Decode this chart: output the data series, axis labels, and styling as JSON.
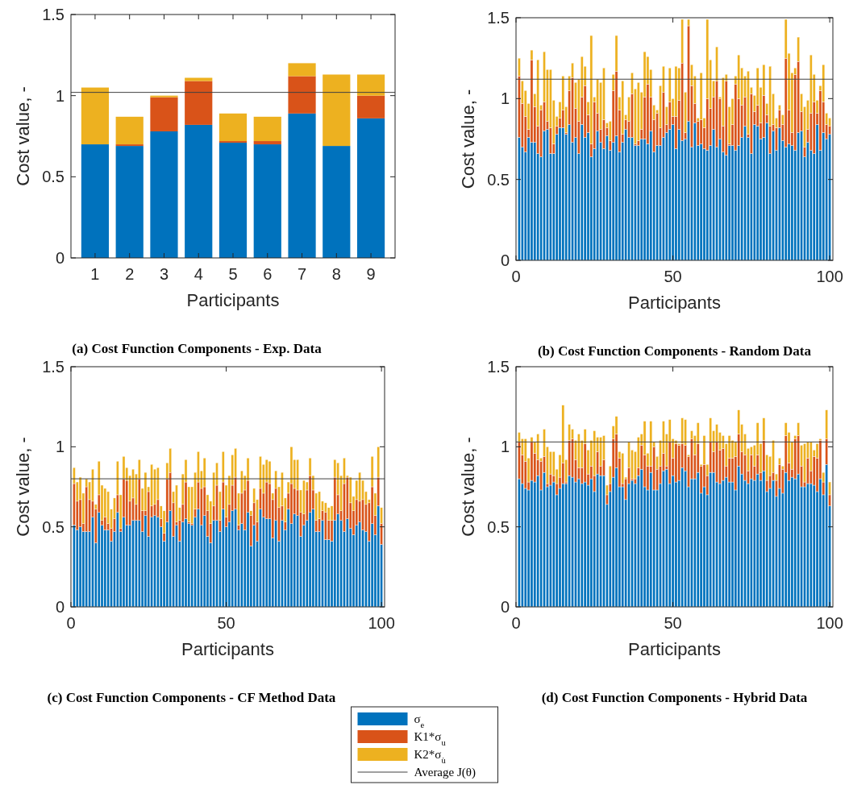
{
  "chart_data": [
    {
      "type": "bar",
      "stacked": true,
      "title": "(a) Cost Function Components - Exp. Data",
      "xlabel": "Participants",
      "ylabel": "Cost value, -",
      "categories": [
        "1",
        "2",
        "3",
        "4",
        "5",
        "6",
        "7",
        "8",
        "9"
      ],
      "ylim": [
        0,
        1.5
      ],
      "yticks": [
        0,
        0.5,
        1,
        1.5
      ],
      "legend": "bottom",
      "series": [
        {
          "name": "σ$_{e}$",
          "color": "#0072bd",
          "values": [
            0.7,
            0.69,
            0.78,
            0.82,
            0.71,
            0.7,
            0.89,
            0.69,
            0.86
          ]
        },
        {
          "name": "K1*σ$_{u}$",
          "color": "#d95319",
          "values": [
            0,
            0.01,
            0.21,
            0.27,
            0.01,
            0.02,
            0.23,
            0,
            0.14
          ]
        },
        {
          "name": "K2*σ$_{u̇}$",
          "color": "#edb120",
          "values": [
            0.35,
            0.17,
            0.01,
            0.02,
            0.17,
            0.15,
            0.08,
            0.44,
            0.13
          ]
        }
      ],
      "ref_lines": [
        {
          "axis": "y",
          "value": 1.02,
          "label": "Average J(θ)",
          "color": "#404040"
        }
      ]
    },
    {
      "type": "bar",
      "stacked": true,
      "title": "(b) Cost Function Components - Random Data",
      "xlabel": "Participants",
      "ylabel": "Cost value, -",
      "x": [
        1,
        2,
        3,
        4,
        5,
        6,
        7,
        8,
        9,
        10,
        11,
        12,
        13,
        14,
        15,
        16,
        17,
        18,
        19,
        20,
        21,
        22,
        23,
        24,
        25,
        26,
        27,
        28,
        29,
        30,
        31,
        32,
        33,
        34,
        35,
        36,
        37,
        38,
        39,
        40,
        41,
        42,
        43,
        44,
        45,
        46,
        47,
        48,
        49,
        50,
        51,
        52,
        53,
        54,
        55,
        56,
        57,
        58,
        59,
        60,
        61,
        62,
        63,
        64,
        65,
        66,
        67,
        68,
        69,
        70,
        71,
        72,
        73,
        74,
        75,
        76,
        77,
        78,
        79,
        80,
        81,
        82,
        83,
        84,
        85,
        86,
        87,
        88,
        89,
        90,
        91,
        92,
        93,
        94,
        95,
        96,
        97,
        98,
        99,
        100
      ],
      "xlim": [
        0,
        101
      ],
      "xticks": [
        0,
        50,
        100
      ],
      "ylim": [
        0,
        1.5
      ],
      "yticks": [
        0,
        0.5,
        1,
        1.5
      ],
      "series": [
        {
          "color": "#0072bd",
          "values": [
            0.76,
            0.7,
            0.67,
            0.76,
            0.73,
            0.73,
            0.66,
            0.64,
            0.8,
            0.81,
            0.66,
            0.66,
            0.78,
            0.82,
            0.82,
            0.78,
            0.84,
            0.73,
            0.76,
            0.66,
            0.84,
            0.76,
            0.79,
            0.64,
            0.69,
            0.8,
            0.73,
            0.69,
            0.77,
            0.68,
            0.73,
            0.77,
            0.67,
            0.73,
            0.81,
            0.76,
            0.76,
            0.71,
            0.71,
            0.75,
            0.75,
            0.72,
            0.8,
            0.67,
            0.71,
            0.71,
            0.76,
            0.79,
            0.81,
            0.84,
            0.69,
            0.81,
            0.74,
            0.75,
            0.86,
            0.7,
            0.85,
            0.71,
            0.72,
            0.69,
            0.68,
            0.71,
            0.81,
            0.7,
            0.75,
            0.67,
            0.65,
            0.71,
            0.71,
            0.68,
            0.71,
            0.76,
            0.83,
            0.76,
            0.66,
            0.84,
            0.83,
            0.75,
            0.76,
            0.85,
            0.66,
            0.8,
            0.68,
            0.82,
            0.74,
            0.7,
            0.72,
            0.71,
            0.68,
            0.79,
            0.8,
            0.64,
            0.73,
            0.68,
            0.66,
            0.84,
            0.68,
            0.79,
            0.75,
            0.78
          ]
        },
        {
          "color": "#d95319",
          "values": [
            0.38,
            0.27,
            0.22,
            0.05,
            0.51,
            0.22,
            0.17,
            0.29,
            0.18,
            0.05,
            0.16,
            0.06,
            0.05,
            0.06,
            0.11,
            0.01,
            0.21,
            0.4,
            0.18,
            0.2,
            0.17,
            0.32,
            0.11,
            0.08,
            0.29,
            0.11,
            0.08,
            0.18,
            0.05,
            0.06,
            0.32,
            0.4,
            0.26,
            0.05,
            0.06,
            0.1,
            0.27,
            0.01,
            0.03,
            0.06,
            0.26,
            0.37,
            0.21,
            0.2,
            0.2,
            0.11,
            0.28,
            0.05,
            0.17,
            0.05,
            0.2,
            0.18,
            0.48,
            0.04,
            0.59,
            0.38,
            0.12,
            0.15,
            0.15,
            0.13,
            0.32,
            0.23,
            0.2,
            0.41,
            0.25,
            0.16,
            0.46,
            0.01,
            0.13,
            0.41,
            0.29,
            0.2,
            0.18,
            0.02,
            0.37,
            0.08,
            0.13,
            0.1,
            0.26,
            0.05,
            0.17,
            0.04,
            0.14,
            0.11,
            0.1,
            0.55,
            0.21,
            0.08,
            0.47,
            0.44,
            0.12,
            0.06,
            0.08,
            0.23,
            0.32,
            0.07,
            0.37,
            0.19,
            0.09,
            0.05
          ]
        },
        {
          "color": "#edb120",
          "values": [
            0.11,
            0.14,
            0.16,
            0.16,
            0.06,
            0.08,
            0.41,
            0.03,
            0.31,
            0.32,
            0.36,
            0.27,
            0.06,
            0.1,
            0.21,
            0.16,
            0.09,
            0.09,
            0.16,
            0.26,
            0.25,
            0.12,
            0.08,
            0.67,
            0.03,
            0.21,
            0.29,
            0.32,
            0.03,
            0.12,
            0.1,
            0.22,
            0.08,
            0.33,
            0.03,
            0.15,
            0.13,
            0.34,
            0.36,
            0.23,
            0.28,
            0.17,
            0.17,
            0.09,
            0.02,
            0.26,
            0.16,
            0.11,
            0.21,
            0.11,
            0.31,
            0.2,
            0.27,
            0.25,
            0.04,
            0.13,
            0.17,
            0.02,
            0.29,
            0.06,
            0.49,
            0.3,
            0.1,
            0.21,
            0.01,
            0.3,
            0.04,
            0.23,
            0.16,
            0.05,
            0.27,
            0.23,
            0.13,
            0.39,
            0.04,
            0.1,
            0.23,
            0.22,
            0.19,
            0.07,
            0.37,
            0.19,
            0.06,
            0.03,
            0.06,
            0.24,
            0.35,
            0.37,
            0.04,
            0.15,
            0.11,
            0.25,
            0.18,
            0.36,
            0.17,
            0.08,
            0.03,
            0.23,
            0.07,
            0.05
          ]
        }
      ],
      "ref_lines": [
        {
          "axis": "y",
          "value": 1.12,
          "color": "#404040"
        }
      ]
    },
    {
      "type": "bar",
      "stacked": true,
      "title": "(c) Cost Function Components - CF Method Data",
      "xlabel": "Participants",
      "ylabel": "Cost value, -",
      "x": [
        1,
        2,
        3,
        4,
        5,
        6,
        7,
        8,
        9,
        10,
        11,
        12,
        13,
        14,
        15,
        16,
        17,
        18,
        19,
        20,
        21,
        22,
        23,
        24,
        25,
        26,
        27,
        28,
        29,
        30,
        31,
        32,
        33,
        34,
        35,
        36,
        37,
        38,
        39,
        40,
        41,
        42,
        43,
        44,
        45,
        46,
        47,
        48,
        49,
        50,
        51,
        52,
        53,
        54,
        55,
        56,
        57,
        58,
        59,
        60,
        61,
        62,
        63,
        64,
        65,
        66,
        67,
        68,
        69,
        70,
        71,
        72,
        73,
        74,
        75,
        76,
        77,
        78,
        79,
        80,
        81,
        82,
        83,
        84,
        85,
        86,
        87,
        88,
        89,
        90,
        91,
        92,
        93,
        94,
        95,
        96,
        97,
        98,
        99,
        100
      ],
      "xlim": [
        0,
        101
      ],
      "xticks": [
        0,
        50,
        100
      ],
      "ylim": [
        0,
        1.5
      ],
      "yticks": [
        0,
        0.5,
        1,
        1.5
      ],
      "series": [
        {
          "color": "#0072bd",
          "values": [
            0.51,
            0.48,
            0.5,
            0.47,
            0.47,
            0.47,
            0.56,
            0.4,
            0.59,
            0.51,
            0.48,
            0.48,
            0.41,
            0.47,
            0.59,
            0.47,
            0.56,
            0.51,
            0.51,
            0.54,
            0.54,
            0.54,
            0.47,
            0.57,
            0.44,
            0.56,
            0.57,
            0.56,
            0.5,
            0.41,
            0.53,
            0.6,
            0.44,
            0.51,
            0.41,
            0.53,
            0.55,
            0.52,
            0.51,
            0.56,
            0.61,
            0.51,
            0.57,
            0.44,
            0.4,
            0.54,
            0.54,
            0.47,
            0.61,
            0.5,
            0.53,
            0.6,
            0.61,
            0.48,
            0.52,
            0.48,
            0.59,
            0.38,
            0.51,
            0.41,
            0.61,
            0.56,
            0.55,
            0.55,
            0.43,
            0.54,
            0.41,
            0.54,
            0.48,
            0.61,
            0.52,
            0.58,
            0.57,
            0.44,
            0.51,
            0.54,
            0.59,
            0.61,
            0.47,
            0.47,
            0.54,
            0.42,
            0.42,
            0.41,
            0.54,
            0.58,
            0.54,
            0.47,
            0.55,
            0.49,
            0.45,
            0.51,
            0.53,
            0.48,
            0.47,
            0.41,
            0.52,
            0.45,
            0.63,
            0.39
          ]
        },
        {
          "color": "#d95319",
          "values": [
            0.26,
            0.18,
            0.17,
            0.05,
            0.28,
            0.2,
            0.1,
            0.21,
            0.11,
            0.03,
            0.08,
            0.04,
            0.08,
            0.08,
            0.11,
            0.02,
            0.24,
            0.28,
            0.15,
            0.14,
            0.1,
            0.26,
            0.13,
            0.03,
            0.28,
            0.07,
            0.07,
            0.11,
            0.05,
            0.05,
            0.27,
            0.24,
            0.21,
            0.02,
            0.13,
            0.11,
            0.23,
            0.01,
            0.01,
            0.05,
            0.17,
            0.23,
            0.18,
            0.16,
            0.12,
            0.09,
            0.22,
            0.07,
            0.17,
            0.06,
            0.11,
            0.16,
            0.2,
            0.03,
            0.19,
            0.25,
            0.2,
            0.19,
            0.14,
            0.12,
            0.13,
            0.15,
            0.23,
            0.22,
            0.24,
            0.2,
            0.21,
            0.09,
            0.05,
            0.1,
            0.25,
            0.16,
            0.16,
            0.15,
            0.07,
            0.19,
            0.23,
            0.12,
            0.07,
            0.08,
            0.06,
            0.17,
            0.12,
            0.13,
            0.27,
            0.12,
            0.06,
            0.3,
            0.26,
            0.16,
            0.15,
            0.16,
            0.13,
            0.19,
            0.17,
            0.24,
            0.23,
            0.12,
            0.18,
            0.13
          ]
        },
        {
          "color": "#edb120",
          "values": [
            0.1,
            0.12,
            0.14,
            0.19,
            0.05,
            0.11,
            0.2,
            0.03,
            0.21,
            0.22,
            0.18,
            0.2,
            0.12,
            0.13,
            0.21,
            0.21,
            0.14,
            0.08,
            0.16,
            0.18,
            0.19,
            0.12,
            0.14,
            0.24,
            0.03,
            0.26,
            0.22,
            0.2,
            0.08,
            0.14,
            0.1,
            0.15,
            0.07,
            0.23,
            0.08,
            0.19,
            0.14,
            0.22,
            0.23,
            0.23,
            0.19,
            0.11,
            0.18,
            0.1,
            0.14,
            0.21,
            0.14,
            0.18,
            0.19,
            0.2,
            0.18,
            0.19,
            0.18,
            0.2,
            0.14,
            0.09,
            0.14,
            0.03,
            0.09,
            0.14,
            0.2,
            0.18,
            0.14,
            0.14,
            0.04,
            0.11,
            0.13,
            0.21,
            0.15,
            0.07,
            0.23,
            0.18,
            0.19,
            0.14,
            0.21,
            0.05,
            0.11,
            0.09,
            0.17,
            0.17,
            0.06,
            0.06,
            0.08,
            0.09,
            0.11,
            0.2,
            0.22,
            0.16,
            0.01,
            0.16,
            0.09,
            0.12,
            0.18,
            0.12,
            0.08,
            0.02,
            0.19,
            0.14,
            0.19,
            0.1
          ]
        }
      ],
      "ref_lines": [
        {
          "axis": "y",
          "value": 0.8,
          "color": "#404040"
        }
      ]
    },
    {
      "type": "bar",
      "stacked": true,
      "title": "(d) Cost Function Components - Hybrid Data",
      "xlabel": "Participants",
      "ylabel": "Cost value, -",
      "x": [
        1,
        2,
        3,
        4,
        5,
        6,
        7,
        8,
        9,
        10,
        11,
        12,
        13,
        14,
        15,
        16,
        17,
        18,
        19,
        20,
        21,
        22,
        23,
        24,
        25,
        26,
        27,
        28,
        29,
        30,
        31,
        32,
        33,
        34,
        35,
        36,
        37,
        38,
        39,
        40,
        41,
        42,
        43,
        44,
        45,
        46,
        47,
        48,
        49,
        50,
        51,
        52,
        53,
        54,
        55,
        56,
        57,
        58,
        59,
        60,
        61,
        62,
        63,
        64,
        65,
        66,
        67,
        68,
        69,
        70,
        71,
        72,
        73,
        74,
        75,
        76,
        77,
        78,
        79,
        80,
        81,
        82,
        83,
        84,
        85,
        86,
        87,
        88,
        89,
        90,
        91,
        92,
        93,
        94,
        95,
        96,
        97,
        98,
        99,
        100
      ],
      "xlim": [
        0,
        101
      ],
      "xticks": [
        0,
        50,
        100
      ],
      "ylim": [
        0,
        1.5
      ],
      "yticks": [
        0,
        0.5,
        1,
        1.5
      ],
      "series": [
        {
          "color": "#0072bd",
          "values": [
            0.8,
            0.77,
            0.74,
            0.73,
            0.79,
            0.78,
            0.82,
            0.73,
            0.84,
            0.75,
            0.76,
            0.78,
            0.7,
            0.74,
            0.77,
            0.77,
            0.82,
            0.81,
            0.78,
            0.8,
            0.77,
            0.78,
            0.76,
            0.8,
            0.72,
            0.83,
            0.82,
            0.82,
            0.64,
            0.72,
            0.81,
            0.87,
            0.75,
            0.75,
            0.67,
            0.77,
            0.79,
            0.77,
            0.82,
            0.86,
            0.75,
            0.73,
            0.84,
            0.73,
            0.73,
            0.77,
            0.85,
            0.86,
            0.77,
            0.82,
            0.78,
            0.79,
            0.87,
            0.85,
            0.75,
            0.8,
            0.8,
            0.84,
            0.71,
            0.75,
            0.7,
            0.84,
            0.84,
            0.78,
            0.77,
            0.79,
            0.81,
            0.78,
            0.78,
            0.73,
            0.88,
            0.83,
            0.79,
            0.77,
            0.8,
            0.79,
            0.83,
            0.79,
            0.85,
            0.72,
            0.74,
            0.79,
            0.69,
            0.74,
            0.71,
            0.84,
            0.79,
            0.81,
            0.8,
            0.83,
            0.75,
            0.75,
            0.77,
            0.77,
            0.76,
            0.72,
            0.8,
            0.7,
            0.89,
            0.63
          ]
        },
        {
          "color": "#d95319",
          "values": [
            0.23,
            0.18,
            0.17,
            0.05,
            0.24,
            0.18,
            0.1,
            0.18,
            0.1,
            0.02,
            0.07,
            0.04,
            0.07,
            0.07,
            0.13,
            0.01,
            0.22,
            0.24,
            0.14,
            0.07,
            0.1,
            0.24,
            0.07,
            0.08,
            0.1,
            0.14,
            0.06,
            0.1,
            0.06,
            0.05,
            0.24,
            0.21,
            0.18,
            0.02,
            0.13,
            0.1,
            0.01,
            0.03,
            0.05,
            0.15,
            0.2,
            0.15,
            0.04,
            0.27,
            0.13,
            0.11,
            0.11,
            0.02,
            0.26,
            0.11,
            0.24,
            0.22,
            0.15,
            0.16,
            0.19,
            0.25,
            0.15,
            0.18,
            0.17,
            0.14,
            0.12,
            0.19,
            0.13,
            0.25,
            0.21,
            0.2,
            0.07,
            0.15,
            0.15,
            0.21,
            0.2,
            0.14,
            0.16,
            0.08,
            0.15,
            0.09,
            0.12,
            0.05,
            0.19,
            0.07,
            0.08,
            0.05,
            0.1,
            0.15,
            0.15,
            0.23,
            0.11,
            0.05,
            0.25,
            0.24,
            0.13,
            0.03,
            0.16,
            0.08,
            0.18,
            0.21,
            0.24,
            0.08,
            0.16,
            0.07
          ]
        },
        {
          "color": "#edb120",
          "values": [
            0.06,
            0.1,
            0.14,
            0.15,
            0.03,
            0.07,
            0.16,
            0.02,
            0.17,
            0.23,
            0.14,
            0.15,
            0.09,
            0.14,
            0.36,
            0.14,
            0.1,
            0.06,
            0.12,
            0.21,
            0.17,
            0.09,
            0.15,
            0.16,
            0.28,
            0.09,
            0.18,
            0.15,
            0.06,
            0.11,
            0.08,
            0.11,
            0.04,
            0.19,
            0.01,
            0.16,
            0.18,
            0.17,
            0.19,
            0.07,
            0.21,
            0.08,
            0.28,
            0.03,
            0.08,
            0.16,
            0.2,
            0.2,
            0.14,
            0.12,
            0.02,
            0.01,
            0.16,
            0.16,
            0.01,
            0.05,
            0.12,
            0.13,
            0.01,
            0.18,
            0.07,
            0.15,
            0.13,
            0.11,
            0.11,
            0.08,
            0.14,
            0.14,
            0.11,
            0.09,
            0.15,
            0.17,
            0.13,
            0.14,
            0.05,
            0.13,
            0.2,
            0.18,
            0.14,
            0.16,
            0.12,
            0.2,
            0.04,
            0.04,
            0.02,
            0.08,
            0.19,
            0.17,
            0.02,
            0.08,
            0.13,
            0.24,
            0.1,
            0.18,
            0.04,
            0.09,
            0.01,
            0.06,
            0.18,
            0.08
          ]
        }
      ],
      "ref_lines": [
        {
          "axis": "y",
          "value": 1.03,
          "color": "#404040"
        }
      ]
    }
  ]
}
